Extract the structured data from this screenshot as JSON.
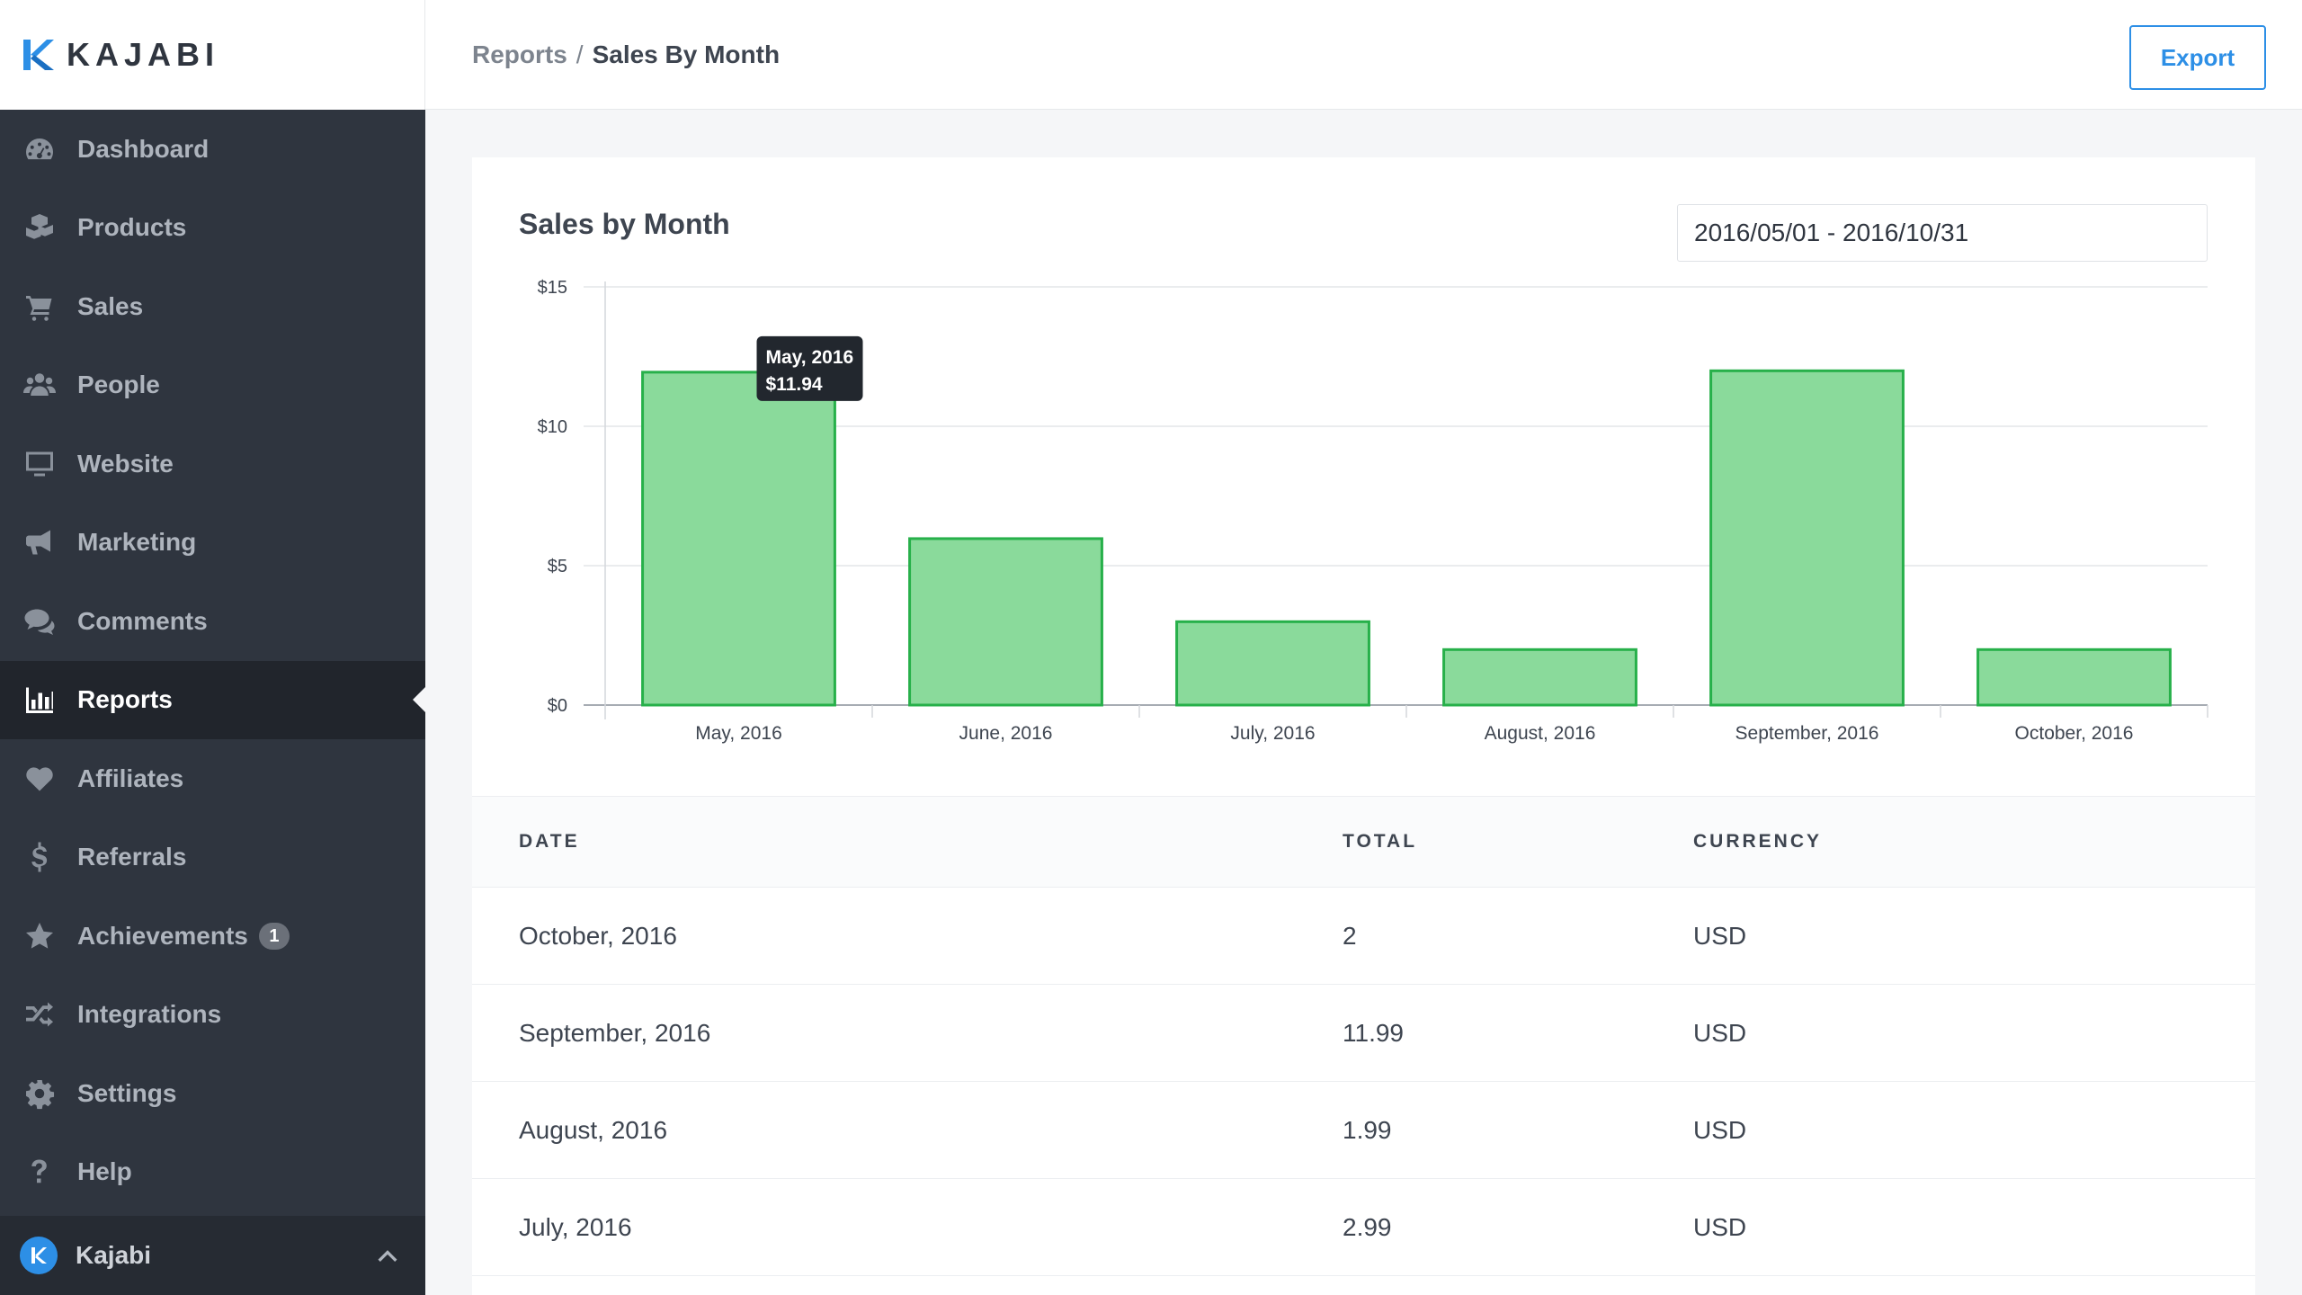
{
  "app": {
    "logo_text": "KAJABI"
  },
  "sidebar": {
    "items": [
      {
        "label": "Dashboard",
        "icon": "dashboard-icon"
      },
      {
        "label": "Products",
        "icon": "products-icon"
      },
      {
        "label": "Sales",
        "icon": "cart-icon"
      },
      {
        "label": "People",
        "icon": "people-icon"
      },
      {
        "label": "Website",
        "icon": "monitor-icon"
      },
      {
        "label": "Marketing",
        "icon": "megaphone-icon"
      },
      {
        "label": "Comments",
        "icon": "comments-icon"
      },
      {
        "label": "Reports",
        "icon": "bar-chart-icon",
        "active": true
      },
      {
        "label": "Affiliates",
        "icon": "heart-icon"
      },
      {
        "label": "Referrals",
        "icon": "dollar-icon"
      },
      {
        "label": "Achievements",
        "icon": "star-icon",
        "badge": "1"
      },
      {
        "label": "Integrations",
        "icon": "shuffle-icon"
      },
      {
        "label": "Settings",
        "icon": "gear-icon"
      },
      {
        "label": "Help",
        "icon": "question-icon"
      }
    ],
    "account": {
      "label": "Kajabi"
    }
  },
  "header": {
    "breadcrumb_parent": "Reports",
    "breadcrumb_sep": "/",
    "breadcrumb_current": "Sales By Month",
    "export_label": "Export"
  },
  "report": {
    "date_range": "2016/05/01 - 2016/10/31"
  },
  "chart_data": {
    "type": "bar",
    "title": "Sales by Month",
    "categories": [
      "May, 2016",
      "June, 2016",
      "July, 2016",
      "August, 2016",
      "September, 2016",
      "October, 2016"
    ],
    "values": [
      11.94,
      5.97,
      2.99,
      1.99,
      11.99,
      1.99
    ],
    "y_ticks": [
      "$0",
      "$5",
      "$10",
      "$15"
    ],
    "ylim": [
      0,
      15
    ],
    "grid": true,
    "bar_color": "#8ada9b",
    "bar_border_color": "#27b04a",
    "tooltip": {
      "title": "May, 2016",
      "value": "$11.94"
    }
  },
  "table": {
    "headers": [
      "DATE",
      "TOTAL",
      "CURRENCY"
    ],
    "rows": [
      [
        "October, 2016",
        "2",
        "USD"
      ],
      [
        "September, 2016",
        "11.99",
        "USD"
      ],
      [
        "August, 2016",
        "1.99",
        "USD"
      ],
      [
        "July, 2016",
        "2.99",
        "USD"
      ]
    ]
  },
  "colors": {
    "accent": "#2d8fe6",
    "sidebar_bg": "#2f353f",
    "sidebar_active_bg": "#21252c"
  }
}
